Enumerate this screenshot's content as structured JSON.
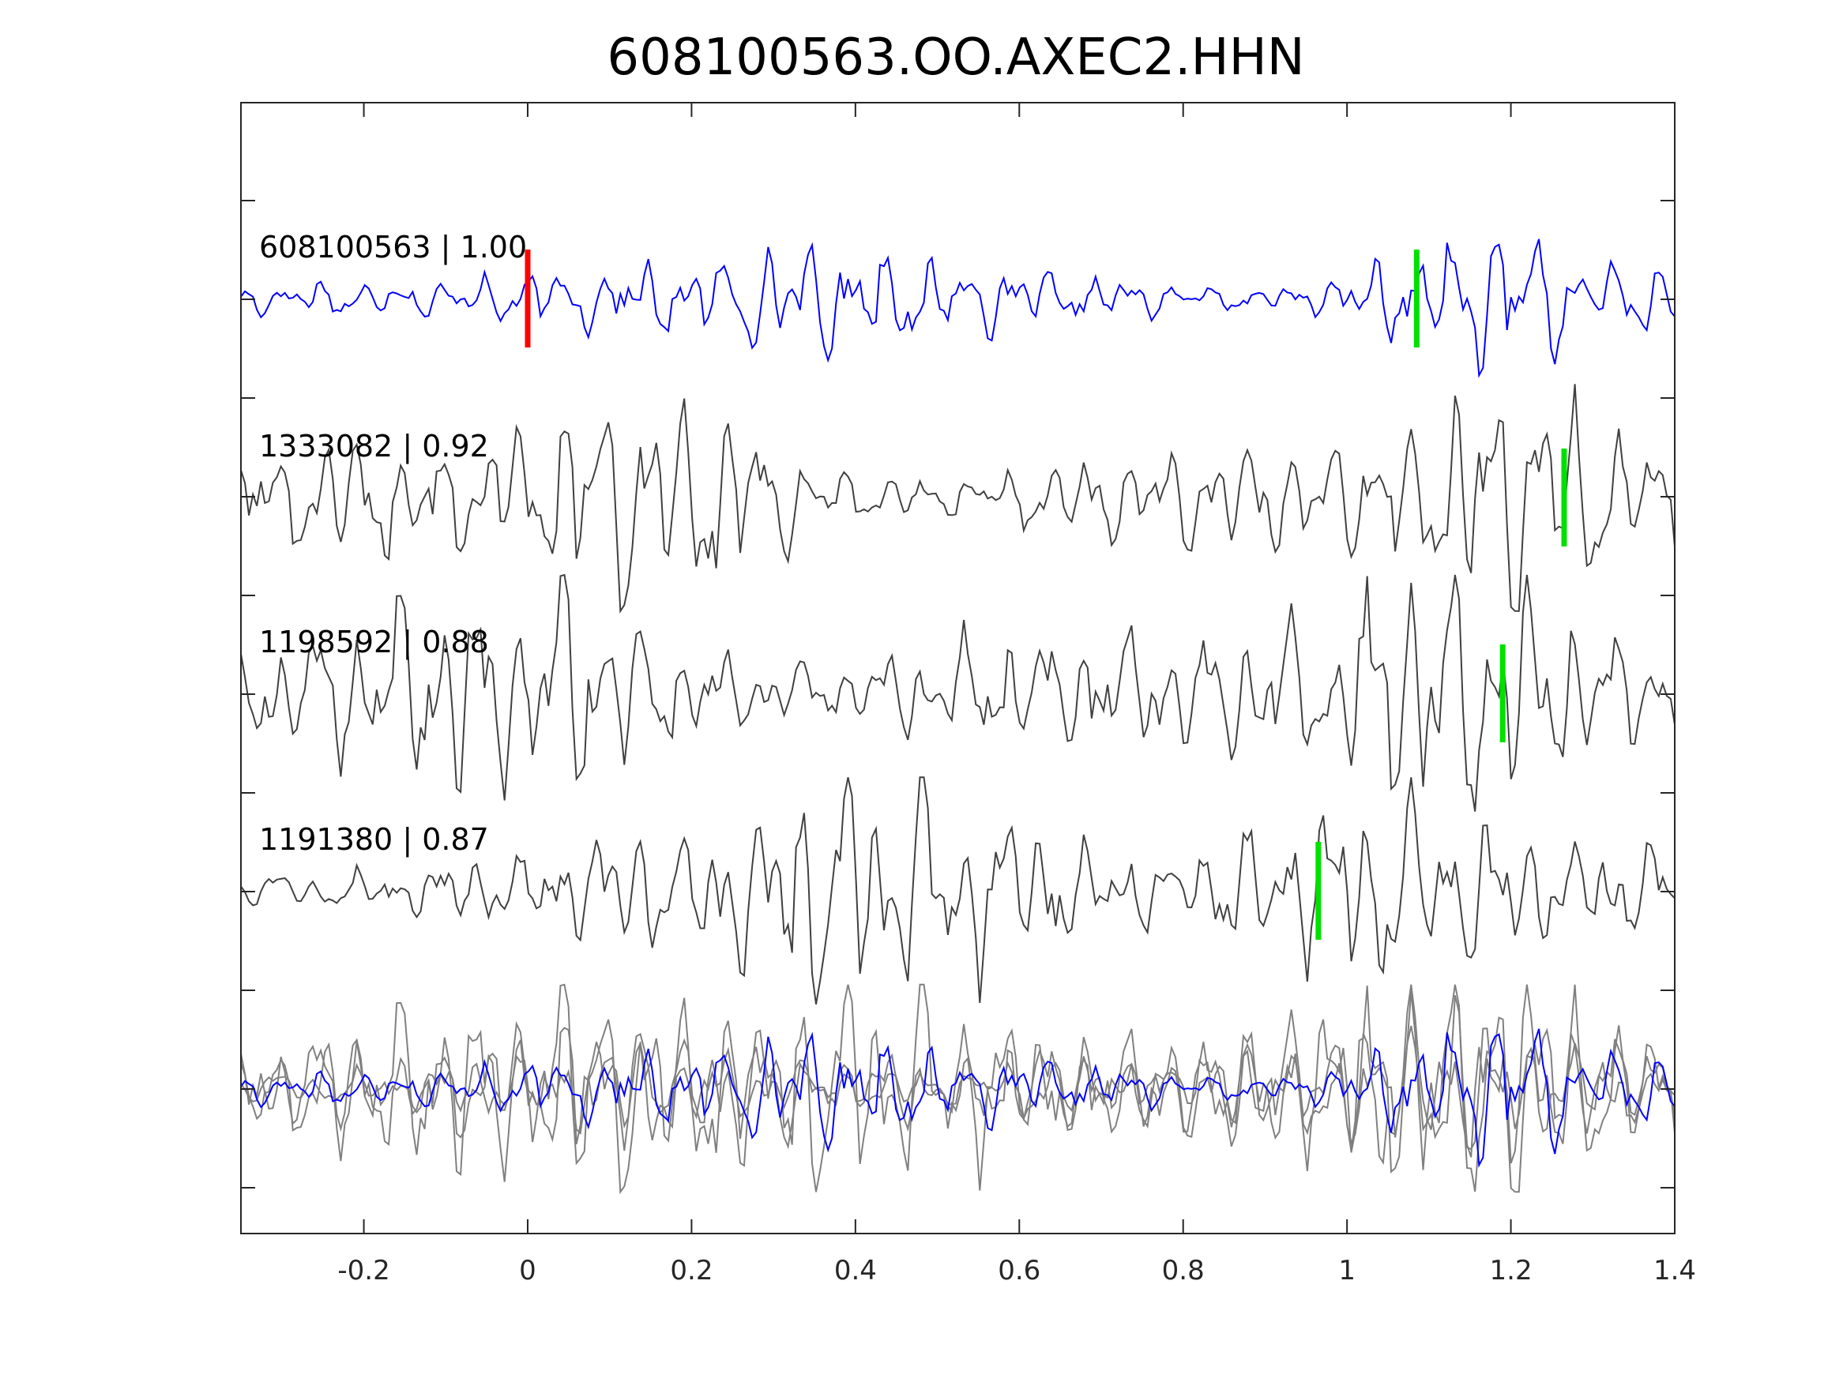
{
  "chart_data": {
    "type": "line",
    "title": "608100563.OO.AXEC2.HHN",
    "xlabel": "",
    "ylabel": "",
    "xlim": [
      -0.35,
      1.4
    ],
    "xticks": [
      -0.2,
      0,
      0.2,
      0.4,
      0.6,
      0.8,
      1,
      1.2,
      1.4
    ],
    "xtick_labels": [
      "-0.2",
      "0",
      "0.2",
      "0.4",
      "0.6",
      "0.8",
      "1",
      "1.2",
      "1.4"
    ],
    "grid": false,
    "traces": [
      {
        "id": "608100563",
        "score": "1.00",
        "label": "608100563 | 1.00",
        "color": "#0000ff",
        "template": true,
        "picks": [
          {
            "t": 0.0,
            "color": "#ff0000"
          },
          {
            "t": 1.085,
            "color": "#00e000"
          }
        ]
      },
      {
        "id": "1333082",
        "score": "0.92",
        "label": "1333082 | 0.92",
        "color": "#404040",
        "picks": [
          {
            "t": 1.265,
            "color": "#00e000"
          }
        ]
      },
      {
        "id": "1198592",
        "score": "0.88",
        "label": "1198592 | 0.88",
        "color": "#404040",
        "picks": [
          {
            "t": 1.19,
            "color": "#00e000"
          }
        ]
      },
      {
        "id": "1191380",
        "score": "0.87",
        "label": "1191380 | 0.87",
        "color": "#404040",
        "picks": [
          {
            "t": 0.965,
            "color": "#00e000"
          }
        ]
      }
    ],
    "overlay": {
      "template_color": "#0000ff",
      "match_color": "#808080"
    }
  }
}
